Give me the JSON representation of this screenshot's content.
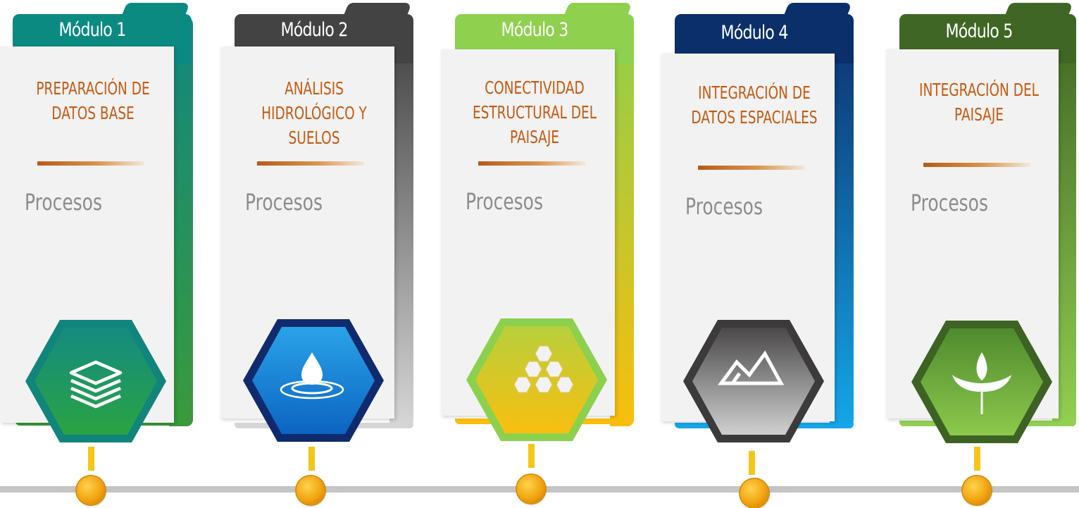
{
  "modules": [
    {
      "label": "Módulo 1",
      "title": "PREPARACIÓN DE\nDATOS BASE",
      "processes_label": "Procesos",
      "icon": "layers-icon",
      "colors": {
        "tab": "#0b8a82",
        "bar_top": "#11877f",
        "bar_bottom": "#3a9a3c",
        "hex_outer": "#11847c",
        "hex_top": "#148b80",
        "hex_bottom": "#2aa343"
      }
    },
    {
      "label": "Módulo 2",
      "title": "ANÁLISIS\nHIDROLÓGICO Y\nSUELOS",
      "processes_label": "Procesos",
      "icon": "water-drop-icon",
      "colors": {
        "tab": "#444343",
        "bar_top": "#3e3d3d",
        "bar_bottom": "#d7d6d6",
        "hex_outer": "#0f2b6e",
        "hex_top": "#2aa3e8",
        "hex_bottom": "#0c64c2"
      }
    },
    {
      "label": "Módulo 3",
      "title": "CONECTIVIDAD\nESTRUCTURAL DEL\nPAISAJE",
      "processes_label": "Procesos",
      "icon": "hexagon-cluster-icon",
      "colors": {
        "tab": "#8fd14f",
        "bar_top": "#8fcf4c",
        "bar_bottom": "#f9be0c",
        "hex_outer": "#8bd14d",
        "hex_top": "#b8cf3c",
        "hex_bottom": "#f8bf10"
      }
    },
    {
      "label": "Módulo 4",
      "title": "INTEGRACIÓN DE\nDATOS ESPACIALES",
      "processes_label": "Procesos",
      "icon": "mountains-icon",
      "colors": {
        "tab": "#0b2f6a",
        "bar_top": "#0d2f6b",
        "bar_bottom": "#14a6e8",
        "hex_outer": "#3c3a3a",
        "hex_top": "#4a4848",
        "hex_bottom": "#d0d0d0"
      }
    },
    {
      "label": "Módulo 5",
      "title": "INTEGRACIÓN DEL\nPAISAJE",
      "processes_label": "Procesos",
      "icon": "sprout-icon",
      "colors": {
        "tab": "#3f6625",
        "bar_top": "#3f6624",
        "bar_bottom": "#92cf52",
        "hex_outer": "#3e6223",
        "hex_top": "#4f8a2e",
        "hex_bottom": "#8dc94c"
      }
    }
  ]
}
